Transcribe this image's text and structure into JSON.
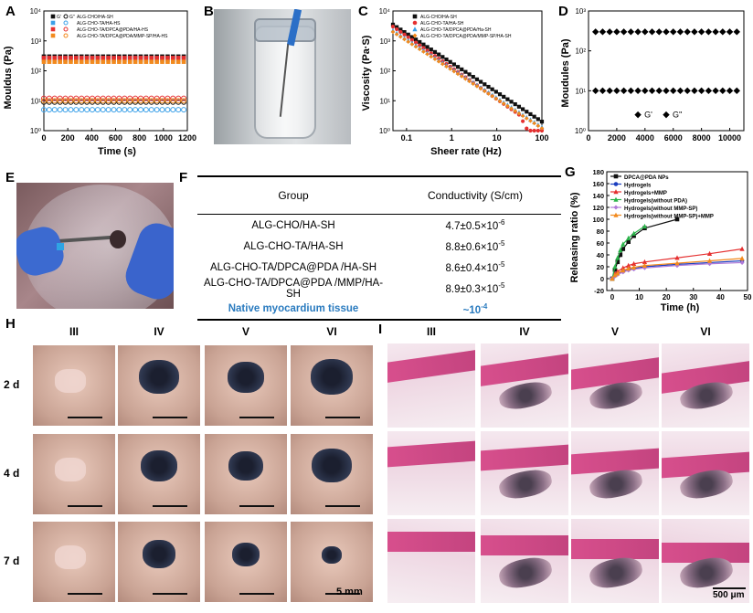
{
  "panels": {
    "a": "A",
    "b": "B",
    "c": "C",
    "d": "D",
    "e": "E",
    "f": "F",
    "g": "G",
    "h": "H",
    "i": "I"
  },
  "chart_data": [
    {
      "id": "A",
      "type": "scatter",
      "xlabel": "Time (s)",
      "ylabel": "Mouldus (Pa)",
      "xlim": [
        0,
        1200
      ],
      "ylim_log": [
        1,
        10000
      ],
      "yscale": "log",
      "x_ticks": [
        "0",
        "200",
        "400",
        "600",
        "800",
        "1000",
        "1200"
      ],
      "y_ticks": [
        "10⁰",
        "10¹",
        "10²",
        "10³",
        "10⁴"
      ],
      "legend": [
        {
          "g1": "G'",
          "g2": "G''",
          "name": "ALG-CHO/HA-SH",
          "color": "#111111"
        },
        {
          "g1": "",
          "g2": "",
          "name": "ALG-CHO-TA/HA-HS",
          "color": "#3aa0e8"
        },
        {
          "g1": "",
          "g2": "",
          "name": "ALG-CHO-TA/DPCA@PDA/HA-HS",
          "color": "#e53030"
        },
        {
          "g1": "",
          "g2": "",
          "name": "ALG-CHO-TA/DPCA@PDA/MMP-SP/HA-HS",
          "color": "#f28a1e"
        }
      ],
      "series": [
        {
          "kind": "G1",
          "color": "#111111",
          "y": 300
        },
        {
          "kind": "G1",
          "color": "#3aa0e8",
          "y": 230
        },
        {
          "kind": "G1",
          "color": "#e53030",
          "y": 270
        },
        {
          "kind": "G1",
          "color": "#f28a1e",
          "y": 200
        },
        {
          "kind": "G2",
          "color": "#111111",
          "y": 9
        },
        {
          "kind": "G2",
          "color": "#3aa0e8",
          "y": 5
        },
        {
          "kind": "G2",
          "color": "#e53030",
          "y": 12
        },
        {
          "kind": "G2",
          "color": "#f28a1e",
          "y": 10
        }
      ]
    },
    {
      "id": "C",
      "type": "scatter",
      "xlabel": "Sheer rate (Hz)",
      "ylabel": "Viscosity (Pa·S)",
      "xlim_log": [
        0.05,
        100
      ],
      "ylim_log": [
        1,
        10000
      ],
      "xscale": "log",
      "yscale": "log",
      "x_ticks": [
        "0.1",
        "1",
        "10",
        "100"
      ],
      "y_ticks": [
        "10⁰",
        "10¹",
        "10²",
        "10³",
        "10⁴"
      ],
      "legend": [
        {
          "name": "ALG-CHO/HA-SH",
          "color": "#111111",
          "marker": "square"
        },
        {
          "name": "ALG-CHO-TA/HA-SH",
          "color": "#e53030",
          "marker": "circle"
        },
        {
          "name": "ALG-CHO-TA/DPCA@PDA/Ha-SH",
          "color": "#3aa0e8",
          "marker": "tri"
        },
        {
          "name": "ALG-CHO-TA/DPCA@PDA/MMP-SP/HA-SH",
          "color": "#f28a1e",
          "marker": "dia"
        }
      ],
      "series": [
        {
          "color": "#111111",
          "y_start": 3500,
          "y_end": 2,
          "drop": false
        },
        {
          "color": "#e53030",
          "y_start": 3000,
          "y_end": 1,
          "drop": true
        },
        {
          "color": "#3aa0e8",
          "y_start": 2200,
          "y_end": 1.3,
          "drop": false
        },
        {
          "color": "#f28a1e",
          "y_start": 2000,
          "y_end": 1.2,
          "drop": false
        }
      ]
    },
    {
      "id": "D",
      "type": "scatter",
      "xlabel": "",
      "ylabel": "Moudules (Pa)",
      "xlim": [
        0,
        11000
      ],
      "ylim_log": [
        1,
        1000
      ],
      "yscale": "log",
      "x_ticks": [
        "0",
        "2000",
        "4000",
        "6000",
        "8000",
        "10000"
      ],
      "y_ticks": [
        "10⁰",
        "10¹",
        "10²",
        "10³"
      ],
      "legend": [
        {
          "name": "G'"
        },
        {
          "name": "G''"
        }
      ],
      "series": [
        {
          "name": "G'",
          "y": 300
        },
        {
          "name": "G''",
          "y": 10
        }
      ]
    },
    {
      "id": "G",
      "type": "line",
      "xlabel": "Time (h)",
      "ylabel": "Releasing ratio (%)",
      "xlim": [
        -2,
        50
      ],
      "ylim": [
        -20,
        180
      ],
      "x_ticks": [
        "0",
        "10",
        "20",
        "30",
        "40",
        "50"
      ],
      "y_ticks": [
        "-20",
        "0",
        "20",
        "40",
        "60",
        "80",
        "100",
        "120",
        "140",
        "160",
        "180"
      ],
      "series": [
        {
          "name": "DPCA@PDA NPs",
          "color": "#111111",
          "marker": "square",
          "x": [
            0,
            1,
            2,
            3,
            4,
            6,
            8,
            12,
            24
          ],
          "y": [
            0,
            15,
            28,
            40,
            50,
            62,
            72,
            85,
            100
          ]
        },
        {
          "name": "Hydrogels",
          "color": "#1a3dbf",
          "marker": "circle",
          "x": [
            0,
            1,
            2,
            4,
            6,
            8,
            12,
            24,
            36,
            48
          ],
          "y": [
            0,
            5,
            8,
            12,
            15,
            17,
            20,
            24,
            27,
            30
          ]
        },
        {
          "name": "Hydrogels+MMP",
          "color": "#e53030",
          "marker": "tri",
          "x": [
            0,
            1,
            2,
            4,
            6,
            8,
            12,
            24,
            36,
            48
          ],
          "y": [
            0,
            8,
            12,
            18,
            22,
            25,
            28,
            35,
            42,
            50
          ]
        },
        {
          "name": "Hydrogels(without PDA)",
          "color": "#2bb34a",
          "marker": "tri",
          "x": [
            0,
            1,
            2,
            3,
            4,
            6,
            8,
            12
          ],
          "y": [
            0,
            20,
            35,
            48,
            58,
            68,
            76,
            88
          ]
        },
        {
          "name": "Hydrogels(without MMP-SP)",
          "color": "#b07ad8",
          "marker": "dia",
          "x": [
            0,
            1,
            2,
            4,
            6,
            8,
            12,
            24,
            36,
            48
          ],
          "y": [
            0,
            4,
            7,
            11,
            14,
            16,
            18,
            22,
            25,
            27
          ]
        },
        {
          "name": "Hydrogels(without MMP-SP)+MMP",
          "color": "#f28a1e",
          "marker": "tri",
          "x": [
            0,
            1,
            2,
            4,
            6,
            8,
            12,
            24,
            36,
            48
          ],
          "y": [
            0,
            6,
            9,
            14,
            17,
            19,
            22,
            26,
            30,
            34
          ]
        }
      ]
    },
    {
      "id": "F",
      "type": "table",
      "headers": [
        "Group",
        "Conductivity (S/cm)"
      ],
      "rows": [
        [
          "ALG-CHO/HA-SH",
          "4.7±0.5×10",
          "-6"
        ],
        [
          "ALG-CHO-TA/HA-SH",
          "8.8±0.6×10",
          "-5"
        ],
        [
          "ALG-CHO-TA/DPCA@PDA /HA-SH",
          "8.6±0.4×10",
          "-5"
        ],
        [
          "ALG-CHO-TA/DPCA@PDA /MMP/HA-SH",
          "8.9±0.3×10",
          "-5"
        ]
      ],
      "native": [
        "Native myocardium tissue",
        "~10",
        "-4"
      ]
    }
  ],
  "h_panel": {
    "cols": [
      "III",
      "IV",
      "V",
      "VI"
    ],
    "rows": [
      "2 d",
      "4 d",
      "7 d"
    ],
    "scale": "5 mm"
  },
  "i_panel": {
    "cols": [
      "III",
      "IV",
      "V",
      "VI"
    ],
    "scale": "500 μm"
  }
}
